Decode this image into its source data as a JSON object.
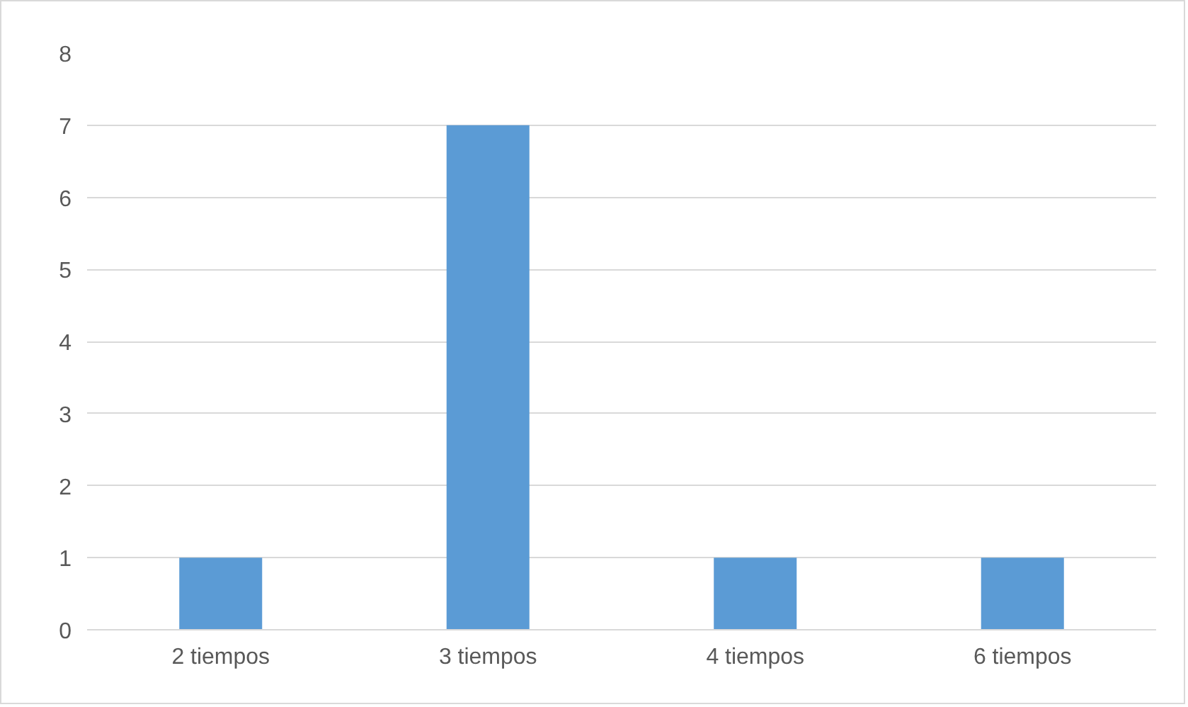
{
  "chart_data": {
    "type": "bar",
    "categories": [
      "2 tiempos",
      "3 tiempos",
      "4 tiempos",
      "6 tiempos"
    ],
    "values": [
      1,
      7,
      1,
      1
    ],
    "color": "#5b9bd5",
    "ylim": [
      0,
      8
    ],
    "yticks": [
      0,
      1,
      2,
      3,
      4,
      5,
      6,
      7,
      8
    ],
    "grid": "y"
  }
}
